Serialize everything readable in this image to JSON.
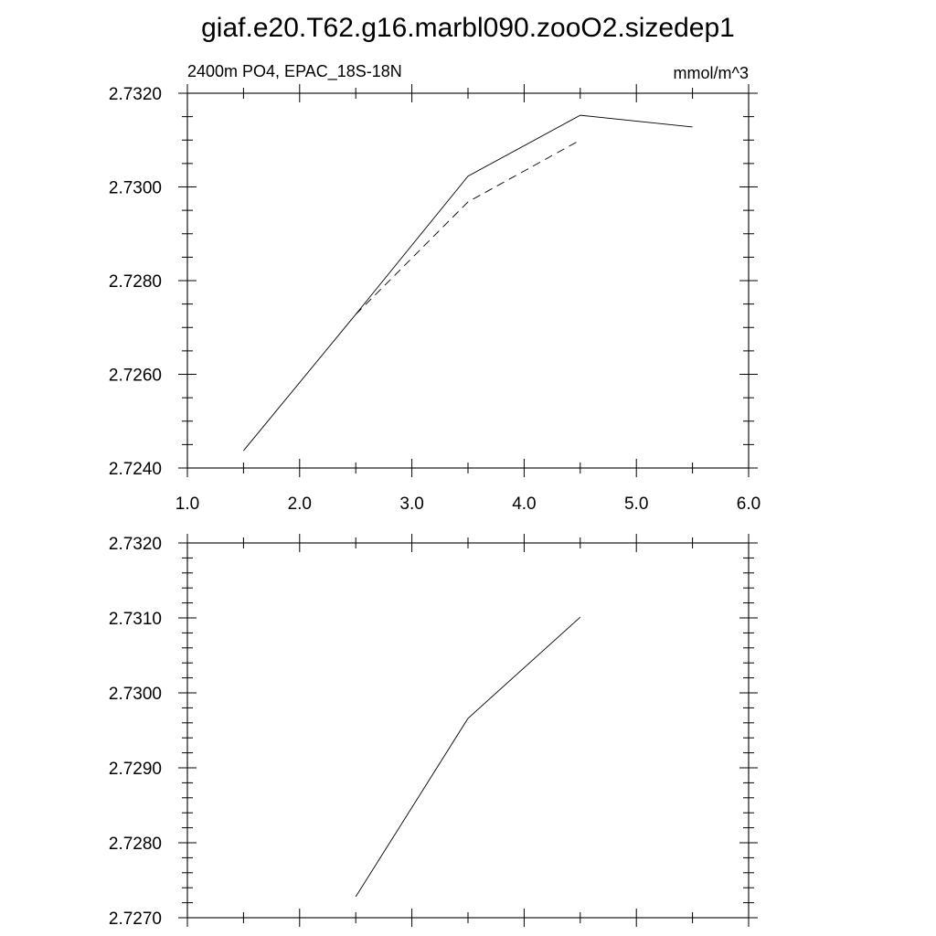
{
  "title": "giaf.e20.T62.g16.marbl090.zooO2.sizedep1",
  "chart_data": [
    {
      "type": "line",
      "subtitle_left": "2400m PO4, EPAC_18S-18N",
      "subtitle_right": "mmol/m^3",
      "xlim": [
        1.0,
        6.0
      ],
      "ylim": [
        2.724,
        2.732
      ],
      "x_tick_labels": [
        "1.0",
        "2.0",
        "3.0",
        "4.0",
        "5.0",
        "6.0"
      ],
      "y_tick_labels": [
        "2.7240",
        "2.7260",
        "2.7280",
        "2.7300",
        "2.7320"
      ],
      "grid": false,
      "series": [
        {
          "style": "solid",
          "x": [
            1.5,
            2.5,
            3.5,
            4.5,
            5.5
          ],
          "y": [
            2.72437,
            2.72728,
            2.73023,
            2.73153,
            2.73128
          ]
        },
        {
          "style": "dashed",
          "x": [
            2.5,
            3.5,
            4.5
          ],
          "y": [
            2.72728,
            2.72968,
            2.731
          ]
        }
      ]
    },
    {
      "type": "line",
      "xlim": [
        1.0,
        6.0
      ],
      "ylim": [
        2.727,
        2.732
      ],
      "y_tick_labels": [
        "2.7270",
        "2.7280",
        "2.7290",
        "2.7300",
        "2.7310",
        "2.7320"
      ],
      "grid": false,
      "series": [
        {
          "style": "solid",
          "x": [
            2.5,
            3.5,
            4.5
          ],
          "y": [
            2.72728,
            2.72966,
            2.73101
          ]
        }
      ]
    }
  ]
}
